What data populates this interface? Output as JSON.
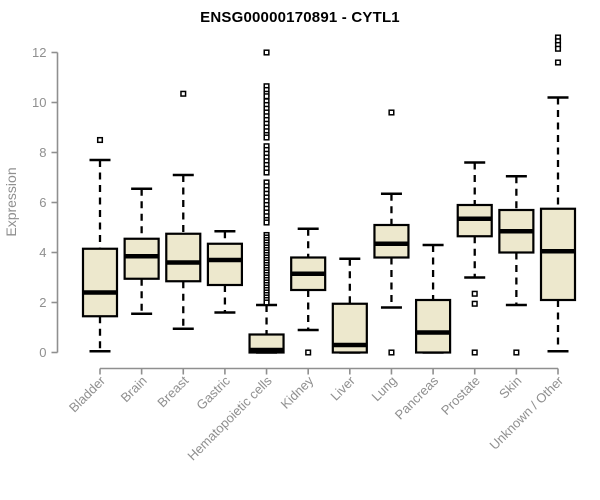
{
  "chart_data": {
    "type": "boxplot",
    "title": "ENSG00000170891 - CYTL1",
    "ylabel": "Expression",
    "xlabel": "",
    "ylim": [
      0,
      12
    ],
    "yticks": [
      0,
      2,
      4,
      6,
      8,
      10,
      12
    ],
    "grid": false,
    "legend": "none",
    "colors": {
      "box_fill": "#ede8cd",
      "box_stroke": "#000000",
      "median": "#000000",
      "whisker": "#000000",
      "outlier_fill": "#ffffff",
      "outlier_stroke": "#000000",
      "axis": "#8f8f8f",
      "tick_label": "#8f8f8f",
      "title": "#000000"
    },
    "categories": [
      "Bladder",
      "Brain",
      "Breast",
      "Gastric",
      "Hematopoietic cells",
      "Kidney",
      "Liver",
      "Lung",
      "Pancreas",
      "Prostate",
      "Skin",
      "Unknown / Other"
    ],
    "series": [
      {
        "name": "Bladder",
        "low": 0.05,
        "q1": 1.45,
        "median": 2.4,
        "q3": 4.15,
        "high": 7.7,
        "outliers": [
          8.5
        ]
      },
      {
        "name": "Brain",
        "low": 1.55,
        "q1": 2.95,
        "median": 3.85,
        "q3": 4.55,
        "high": 6.55,
        "outliers": []
      },
      {
        "name": "Breast",
        "low": 0.95,
        "q1": 2.85,
        "median": 3.6,
        "q3": 4.75,
        "high": 7.1,
        "outliers": [
          10.35
        ]
      },
      {
        "name": "Gastric",
        "low": 1.6,
        "q1": 2.7,
        "median": 3.7,
        "q3": 4.35,
        "high": 4.85,
        "outliers": []
      },
      {
        "name": "Hematopoietic cells",
        "low": 0.0,
        "q1": 0.0,
        "median": 0.1,
        "q3": 0.72,
        "high": 1.9,
        "outliers": [
          12.0,
          10.65,
          10.5,
          10.35,
          10.25,
          10.05,
          9.9,
          9.75,
          9.6,
          9.45,
          9.3,
          9.15,
          9.0,
          8.85,
          8.7,
          8.6,
          8.25,
          8.1,
          7.95,
          7.8,
          7.65,
          7.5,
          7.35,
          7.2,
          6.8,
          6.65,
          6.5,
          6.35,
          6.2,
          6.05,
          5.9,
          5.75,
          5.6,
          5.45,
          5.3,
          5.2,
          4.7,
          4.6,
          4.5,
          4.4,
          4.3,
          4.2,
          4.1,
          4.0,
          3.9,
          3.8,
          3.7,
          3.6,
          3.5,
          3.4,
          3.3,
          3.2,
          3.1,
          3.0,
          2.9,
          2.8,
          2.7,
          2.6,
          2.5,
          2.4,
          2.3,
          2.2,
          2.1,
          2.0
        ]
      },
      {
        "name": "Kidney",
        "low": 0.9,
        "q1": 2.5,
        "median": 3.15,
        "q3": 3.8,
        "high": 4.95,
        "outliers": [
          0.0
        ]
      },
      {
        "name": "Liver",
        "low": 0.0,
        "q1": 0.0,
        "median": 0.3,
        "q3": 1.95,
        "high": 3.75,
        "outliers": []
      },
      {
        "name": "Lung",
        "low": 1.8,
        "q1": 3.8,
        "median": 4.35,
        "q3": 5.1,
        "high": 6.35,
        "outliers": [
          9.6,
          0.0
        ]
      },
      {
        "name": "Pancreas",
        "low": 0.0,
        "q1": 0.0,
        "median": 0.8,
        "q3": 2.1,
        "high": 4.3,
        "outliers": []
      },
      {
        "name": "Prostate",
        "low": 3.0,
        "q1": 4.65,
        "median": 5.35,
        "q3": 5.9,
        "high": 7.6,
        "outliers": [
          2.35,
          1.95,
          0.0
        ]
      },
      {
        "name": "Skin",
        "low": 1.9,
        "q1": 4.0,
        "median": 4.85,
        "q3": 5.7,
        "high": 7.05,
        "outliers": [
          0.0
        ]
      },
      {
        "name": "Unknown / Other",
        "low": 0.05,
        "q1": 2.1,
        "median": 4.05,
        "q3": 5.75,
        "high": 10.2,
        "outliers": [
          12.6,
          12.45,
          12.3,
          12.15,
          11.6
        ]
      }
    ]
  }
}
